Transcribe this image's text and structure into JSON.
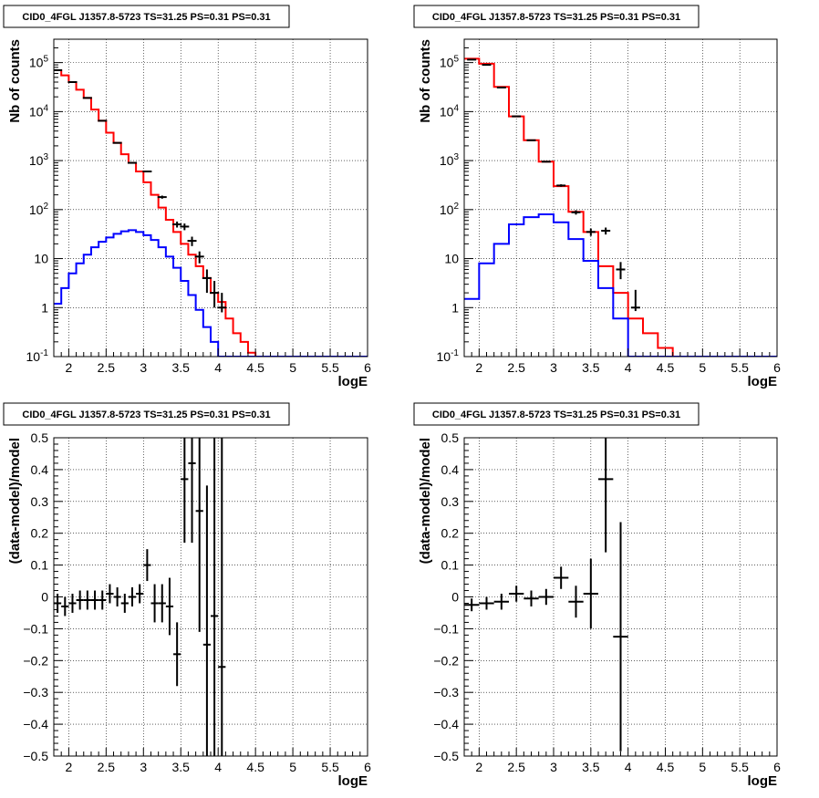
{
  "chart_data": [
    {
      "type": "line",
      "title": "CID0_4FGL J1357.8-5723 TS=31.25 PS=0.31 PS=0.31",
      "xlabel": "logE",
      "ylabel": "Nb of counts",
      "log_y": true,
      "xlim": [
        1.8,
        6
      ],
      "ylim": [
        0.1,
        300000
      ],
      "x_ticks": [
        "2",
        "2.5",
        "3",
        "3.5",
        "4",
        "4.5",
        "5",
        "5.5",
        "6"
      ],
      "y_ticks": [
        "10^-1",
        "1",
        "10",
        "10^2",
        "10^3",
        "10^4",
        "10^5"
      ],
      "grid": true,
      "series": [
        {
          "color": "#ff0000",
          "style": "step",
          "bin_edges": [
            1.8,
            1.9,
            2.0,
            2.1,
            2.2,
            2.3,
            2.4,
            2.5,
            2.6,
            2.7,
            2.8,
            2.9,
            3.0,
            3.1,
            3.2,
            3.3,
            3.4,
            3.5,
            3.6,
            3.7,
            3.8,
            3.9,
            4.0,
            4.1,
            4.2,
            4.3,
            4.4,
            4.5,
            4.6,
            4.7,
            4.8,
            4.9,
            5.0,
            5.1,
            5.2,
            5.3,
            5.4,
            5.5,
            5.6,
            5.7,
            5.8,
            5.9,
            6.0
          ],
          "values": [
            70000,
            55000,
            40000,
            28000,
            19000,
            11000,
            6500,
            3700,
            2300,
            1350,
            900,
            600,
            360,
            200,
            110,
            62,
            35,
            20,
            12,
            7,
            4,
            2,
            1.3,
            0.6,
            0.3,
            0.2,
            0.12,
            0.1,
            0.1,
            0.1,
            0.1,
            0.1,
            0.1,
            0.1,
            0.1,
            0.1,
            0.1,
            0.1,
            0.1,
            0.1,
            0.1,
            0.1
          ]
        },
        {
          "color": "#0000ff",
          "style": "step",
          "bin_edges": [
            1.8,
            1.9,
            2.0,
            2.1,
            2.2,
            2.3,
            2.4,
            2.5,
            2.6,
            2.7,
            2.8,
            2.9,
            3.0,
            3.1,
            3.2,
            3.3,
            3.4,
            3.5,
            3.6,
            3.7,
            3.8,
            3.9,
            4.0,
            4.1,
            4.2,
            4.3,
            4.4,
            4.5,
            4.6,
            4.7,
            4.8,
            4.9,
            5.0,
            5.1,
            5.2,
            5.3,
            5.4,
            5.5,
            5.6,
            5.7,
            5.8,
            5.9,
            6.0
          ],
          "values": [
            1.2,
            2.5,
            5,
            8,
            12,
            17,
            22,
            27,
            32,
            36,
            38,
            35,
            30,
            24,
            17,
            11,
            6.5,
            3.5,
            1.8,
            0.9,
            0.4,
            0.2,
            0.1,
            0.1,
            0.1,
            0.1,
            0.1,
            0.1,
            0.1,
            0.1,
            0.1,
            0.1,
            0.1,
            0.1,
            0.1,
            0.1,
            0.1,
            0.1,
            0.1,
            0.1,
            0.1,
            0.1
          ]
        },
        {
          "color": "#000000",
          "style": "points",
          "x": [
            1.85,
            2.05,
            2.25,
            2.45,
            2.65,
            2.85,
            3.05,
            3.25,
            3.45,
            3.55,
            3.65,
            3.75,
            3.85,
            3.95,
            4.05
          ],
          "y": [
            70000,
            40000,
            19000,
            6500,
            2300,
            900,
            600,
            180,
            50,
            45,
            23,
            11,
            4,
            2,
            1
          ],
          "yerr_low": [
            69700,
            39800,
            18860,
            6420,
            2250,
            870,
            575,
            167,
            43,
            38,
            18,
            8,
            2,
            1,
            0.8
          ],
          "yerr_high": [
            70300,
            40200,
            19140,
            6580,
            2350,
            930,
            625,
            193,
            57,
            52,
            28,
            14,
            6,
            3.5,
            2
          ]
        }
      ]
    },
    {
      "type": "line",
      "title": "CID0_4FGL J1357.8-5723 TS=31.25 PS=0.31 PS=0.31",
      "xlabel": "logE",
      "ylabel": "Nb of counts",
      "log_y": true,
      "xlim": [
        1.8,
        6
      ],
      "ylim": [
        0.1,
        300000
      ],
      "x_ticks": [
        "2",
        "2.5",
        "3",
        "3.5",
        "4",
        "4.5",
        "5",
        "5.5",
        "6"
      ],
      "y_ticks": [
        "10^-1",
        "1",
        "10",
        "10^2",
        "10^3",
        "10^4",
        "10^5"
      ],
      "grid": true,
      "series": [
        {
          "color": "#ff0000",
          "style": "step",
          "bin_edges": [
            1.8,
            2.0,
            2.2,
            2.4,
            2.6,
            2.8,
            3.0,
            3.2,
            3.4,
            3.6,
            3.8,
            4.0,
            4.2,
            4.4,
            4.6,
            4.8,
            5.0,
            5.2,
            5.4,
            5.6,
            5.8,
            6.0
          ],
          "values": [
            120000,
            95000,
            32000,
            8000,
            2600,
            950,
            300,
            90,
            35,
            7,
            2,
            0.6,
            0.3,
            0.15,
            0.1,
            0.1,
            0.1,
            0.1,
            0.1,
            0.1,
            0.1
          ]
        },
        {
          "color": "#0000ff",
          "style": "step",
          "bin_edges": [
            1.8,
            2.0,
            2.2,
            2.4,
            2.6,
            2.8,
            3.0,
            3.2,
            3.4,
            3.6,
            3.8,
            4.0,
            4.2,
            4.4,
            4.6,
            4.8,
            5.0,
            5.2,
            5.4,
            5.6,
            5.8,
            6.0
          ],
          "values": [
            1.5,
            8,
            20,
            50,
            70,
            80,
            55,
            25,
            9,
            2.5,
            0.6,
            0.1,
            0.1,
            0.1,
            0.1,
            0.1,
            0.1,
            0.1,
            0.1,
            0.1,
            0.1
          ]
        },
        {
          "color": "#000000",
          "style": "points",
          "x": [
            1.9,
            2.1,
            2.3,
            2.5,
            2.7,
            2.9,
            3.1,
            3.3,
            3.5,
            3.7,
            3.9,
            4.1
          ],
          "y": [
            115000,
            90000,
            31000,
            8000,
            2600,
            950,
            310,
            88,
            35,
            37,
            6,
            1
          ],
          "yerr_low": [
            114660,
            89700,
            30820,
            7910,
            2549,
            919,
            292,
            79,
            29,
            31,
            3.8,
            0.85
          ],
          "yerr_high": [
            115340,
            90300,
            31180,
            8090,
            2651,
            981,
            328,
            97,
            41,
            43,
            8.5,
            2.3
          ]
        }
      ]
    },
    {
      "type": "scatter",
      "title": "CID0_4FGL J1357.8-5723 TS=31.25 PS=0.31 PS=0.31",
      "xlabel": "logE",
      "ylabel": "(data-model)/model",
      "xlim": [
        1.8,
        6
      ],
      "ylim": [
        -0.5,
        0.5
      ],
      "x_ticks": [
        "2",
        "2.5",
        "3",
        "3.5",
        "4",
        "4.5",
        "5",
        "5.5",
        "6"
      ],
      "y_ticks": [
        "−0.5",
        "−0.4",
        "−0.3",
        "−0.2",
        "−0.1",
        "0",
        "0.1",
        "0.2",
        "0.3",
        "0.4",
        "0.5"
      ],
      "grid": true,
      "series": [
        {
          "color": "#000000",
          "x": [
            1.85,
            1.95,
            2.05,
            2.15,
            2.25,
            2.35,
            2.45,
            2.55,
            2.65,
            2.75,
            2.85,
            2.95,
            3.05,
            3.15,
            3.25,
            3.35,
            3.45,
            3.55,
            3.65,
            3.75,
            3.85,
            3.95,
            4.05
          ],
          "y": [
            -0.02,
            -0.03,
            -0.02,
            -0.01,
            -0.01,
            -0.01,
            -0.01,
            0.01,
            0.0,
            -0.02,
            0.0,
            0.01,
            0.1,
            -0.02,
            -0.02,
            -0.03,
            -0.18,
            0.37,
            0.42,
            0.27,
            -0.15,
            -0.06,
            -0.22
          ],
          "yerr": [
            0.03,
            0.03,
            0.03,
            0.03,
            0.03,
            0.03,
            0.03,
            0.03,
            0.03,
            0.03,
            0.03,
            0.03,
            0.05,
            0.06,
            0.06,
            0.09,
            0.1,
            0.2,
            0.25,
            0.38,
            0.5,
            0.7,
            0.9
          ],
          "xerr": 0.05
        }
      ]
    },
    {
      "type": "scatter",
      "title": "CID0_4FGL J1357.8-5723 TS=31.25 PS=0.31 PS=0.31",
      "xlabel": "logE",
      "ylabel": "(data-model)/model",
      "xlim": [
        1.8,
        6
      ],
      "ylim": [
        -0.5,
        0.5
      ],
      "x_ticks": [
        "2",
        "2.5",
        "3",
        "3.5",
        "4",
        "4.5",
        "5",
        "5.5",
        "6"
      ],
      "y_ticks": [
        "−0.5",
        "−0.4",
        "−0.3",
        "−0.2",
        "−0.1",
        "0",
        "0.1",
        "0.2",
        "0.3",
        "0.4",
        "0.5"
      ],
      "grid": true,
      "series": [
        {
          "color": "#000000",
          "x": [
            1.9,
            2.1,
            2.3,
            2.5,
            2.7,
            2.9,
            3.1,
            3.3,
            3.5,
            3.7,
            3.9
          ],
          "y": [
            -0.025,
            -0.02,
            -0.015,
            0.01,
            -0.005,
            0.0,
            0.06,
            -0.015,
            0.01,
            0.37,
            -0.125
          ],
          "yerr": [
            0.02,
            0.02,
            0.025,
            0.025,
            0.025,
            0.025,
            0.035,
            0.05,
            0.11,
            0.23,
            0.36
          ],
          "xerr": 0.1
        }
      ]
    }
  ]
}
